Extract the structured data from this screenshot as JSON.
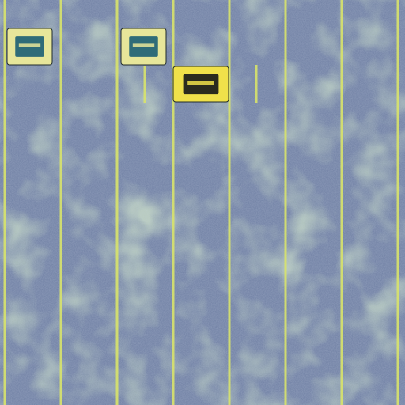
{
  "scene": {
    "description_tag": "aerial-parking-lot",
    "colors": {
      "asphalt": "#6f7fa3",
      "asphalt_dark": "#5e6c92",
      "patch_green": "#8fb08a",
      "patch_light": "#a8c48f",
      "stall_line": "#d8e36a",
      "car_cyan_body": "#e7e69a",
      "car_cyan_roof": "#2f6c78",
      "car_yellow_body": "#f0e14a",
      "car_yellow_roof": "#2b2b1e"
    },
    "stall_line_count": 8,
    "vehicles": [
      {
        "name": "vehicle-1",
        "color": "teal-and-cream"
      },
      {
        "name": "vehicle-2",
        "color": "teal-and-cream"
      },
      {
        "name": "vehicle-3",
        "color": "yellow"
      }
    ]
  }
}
